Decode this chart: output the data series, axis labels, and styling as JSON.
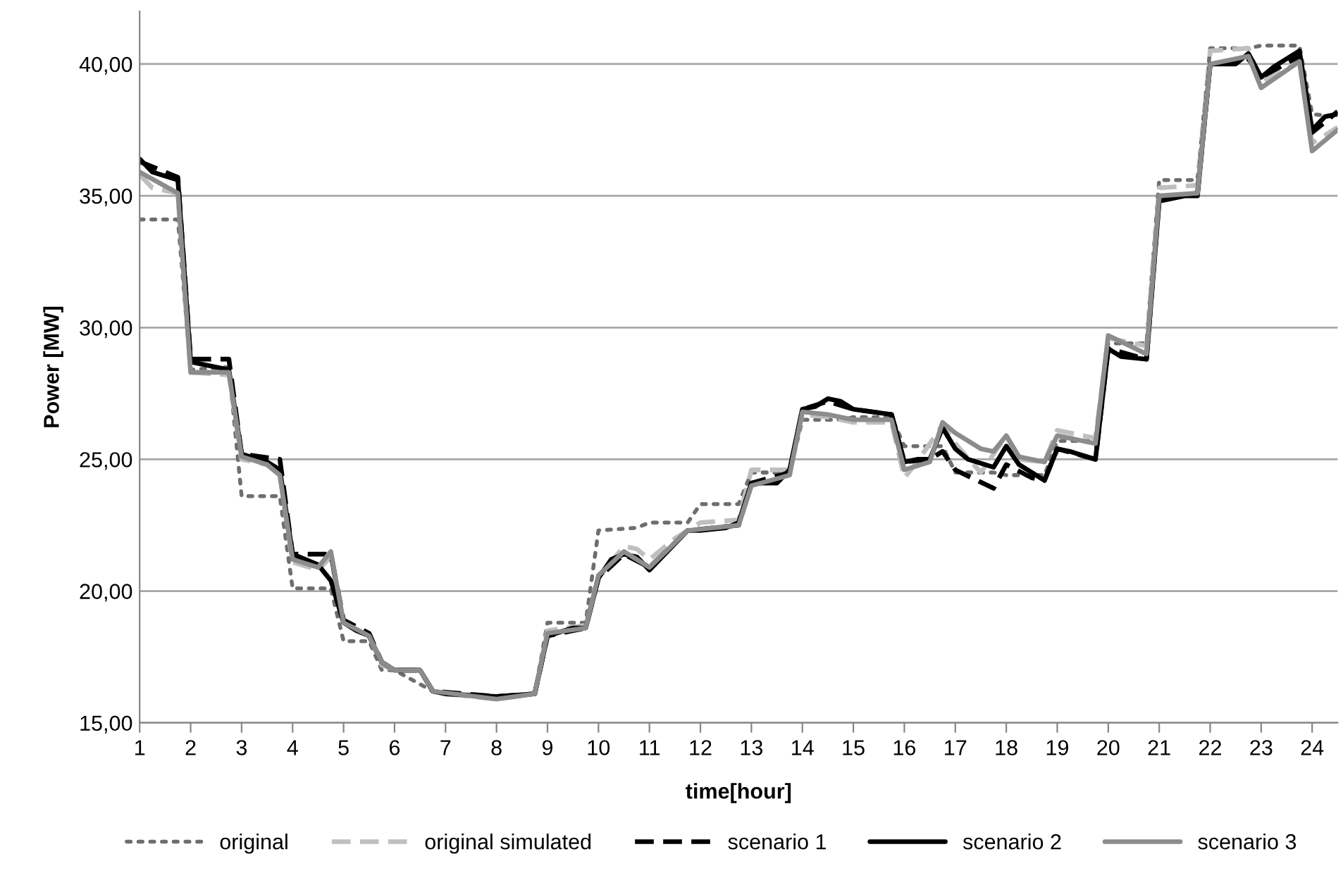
{
  "chart_data": {
    "type": "line",
    "xlabel": "time[hour]",
    "ylabel": "Power [MW]",
    "xlim": [
      1,
      24.5
    ],
    "xticks": [
      1,
      2,
      3,
      4,
      5,
      6,
      7,
      8,
      9,
      10,
      11,
      12,
      13,
      14,
      15,
      16,
      17,
      18,
      19,
      20,
      21,
      22,
      23,
      24
    ],
    "ylim": [
      15,
      42
    ],
    "yticks": [
      {
        "value": 15,
        "label": "15,00"
      },
      {
        "value": 20,
        "label": "20,00"
      },
      {
        "value": 25,
        "label": "25,00"
      },
      {
        "value": 30,
        "label": "30,00"
      },
      {
        "value": 35,
        "label": "35,00"
      },
      {
        "value": 40,
        "label": "40,00"
      }
    ],
    "grid": "y",
    "legend": "bottom",
    "marker": "none",
    "series": [
      {
        "name": "original",
        "color": "#6e6e6e",
        "line_style": "dotted",
        "x": [
          1,
          1.75,
          2,
          2.75,
          3,
          3.75,
          4,
          4.75,
          5,
          5.5,
          5.75,
          6,
          6.75,
          8,
          8.75,
          9,
          9.75,
          10,
          10.75,
          11,
          11.75,
          12,
          12.75,
          13,
          13.75,
          14,
          14.75,
          15,
          15.75,
          16,
          16.75,
          17,
          17.75,
          18,
          18.75,
          19,
          19.75,
          20,
          20.75,
          21,
          21.75,
          22,
          22.75,
          23,
          23.75,
          24,
          24.5
        ],
        "values": [
          34.1,
          34.1,
          28.4,
          28.5,
          23.6,
          23.6,
          20.1,
          20.1,
          18.1,
          18.1,
          17.0,
          17.0,
          16.2,
          15.9,
          16.1,
          18.8,
          18.8,
          22.3,
          22.4,
          22.6,
          22.6,
          23.3,
          23.3,
          24.5,
          24.5,
          26.5,
          26.5,
          26.6,
          26.6,
          25.5,
          25.5,
          24.5,
          24.5,
          24.4,
          24.4,
          25.7,
          25.7,
          29.4,
          29.4,
          35.6,
          35.6,
          40.6,
          40.6,
          40.7,
          40.7,
          38.1,
          38.0
        ]
      },
      {
        "name": "original simulated",
        "color": "#bfbfbf",
        "line_style": "dashed",
        "x": [
          1,
          1.25,
          1.75,
          2,
          2.75,
          3,
          3.5,
          3.75,
          4,
          4.5,
          4.75,
          5,
          5.5,
          5.75,
          6,
          6.5,
          6.75,
          7,
          8,
          8.75,
          9,
          9.75,
          10,
          10.5,
          10.75,
          11,
          11.5,
          12,
          12.75,
          13,
          13.75,
          14,
          14.5,
          15,
          15.75,
          16,
          16.25,
          16.75,
          17,
          17.5,
          18,
          18.25,
          18.75,
          19,
          19.75,
          20,
          20.75,
          21,
          21.75,
          22,
          22.75,
          23,
          23.75,
          24,
          24.5
        ],
        "values": [
          35.8,
          35.3,
          35.1,
          28.3,
          28.2,
          25.0,
          24.8,
          24.4,
          21.1,
          20.8,
          21.3,
          18.8,
          18.3,
          17.2,
          17.0,
          17.0,
          16.2,
          16.1,
          15.9,
          16.1,
          18.5,
          18.7,
          20.5,
          21.7,
          21.6,
          21.2,
          22.0,
          22.6,
          22.7,
          24.6,
          24.6,
          26.7,
          26.6,
          26.4,
          26.4,
          24.3,
          24.9,
          26.3,
          25.6,
          24.5,
          25.9,
          25.0,
          24.9,
          26.1,
          25.8,
          29.6,
          29.3,
          35.3,
          35.4,
          40.5,
          40.6,
          39.3,
          40.2,
          37.0,
          37.6
        ]
      },
      {
        "name": "scenario 1",
        "color": "#000000",
        "line_style": "dashed",
        "x": [
          1,
          1.75,
          2,
          2.75,
          3,
          3.75,
          4,
          4.75,
          5,
          5.5,
          5.75,
          6,
          6.5,
          6.75,
          8,
          8.75,
          9,
          9.75,
          10,
          10.5,
          11,
          11.75,
          12.75,
          13,
          13.75,
          14,
          14.5,
          15,
          15.75,
          16,
          16.5,
          16.75,
          17,
          17.75,
          18,
          18.5,
          18.75,
          19,
          19.75,
          20,
          20.75,
          21,
          21.75,
          22,
          22.75,
          23,
          23.75,
          24,
          24.5
        ],
        "values": [
          36.3,
          35.7,
          28.8,
          28.8,
          25.2,
          25.0,
          21.4,
          21.4,
          18.9,
          18.4,
          17.3,
          17.0,
          17.0,
          16.2,
          16.0,
          16.1,
          18.3,
          18.6,
          20.5,
          21.4,
          20.9,
          22.3,
          22.5,
          24.1,
          24.5,
          26.9,
          27.2,
          26.9,
          26.7,
          24.9,
          25.0,
          25.3,
          24.6,
          23.9,
          24.8,
          24.3,
          24.2,
          25.4,
          25.0,
          29.2,
          28.8,
          34.9,
          35.1,
          40.0,
          40.2,
          39.5,
          40.3,
          37.4,
          38.2
        ]
      },
      {
        "name": "scenario 2",
        "color": "#000000",
        "line_style": "solid",
        "x": [
          1,
          1.25,
          1.75,
          2,
          2.25,
          2.75,
          3,
          3.5,
          3.75,
          4,
          4.5,
          4.75,
          5,
          5.25,
          5.5,
          5.75,
          6,
          6.5,
          6.75,
          7,
          8,
          8.75,
          9,
          9.5,
          9.75,
          10,
          10.25,
          10.5,
          10.75,
          11,
          11.5,
          11.75,
          12,
          12.5,
          12.75,
          13,
          13.5,
          13.75,
          14,
          14.25,
          14.5,
          14.75,
          15,
          15.75,
          16,
          16.25,
          16.5,
          16.75,
          17,
          17.25,
          17.75,
          18,
          18.25,
          18.75,
          19,
          19.25,
          19.75,
          20,
          20.25,
          20.75,
          21,
          21.5,
          21.75,
          22,
          22.5,
          22.75,
          23,
          23.25,
          23.75,
          24,
          24.25,
          24.5
        ],
        "values": [
          36.4,
          35.9,
          35.6,
          28.7,
          28.6,
          28.4,
          25.2,
          24.9,
          24.6,
          21.4,
          21.0,
          20.4,
          18.8,
          18.5,
          18.3,
          17.3,
          17.0,
          17.0,
          16.2,
          16.1,
          16.0,
          16.1,
          18.3,
          18.6,
          18.6,
          20.5,
          21.2,
          21.4,
          21.3,
          20.8,
          21.8,
          22.3,
          22.3,
          22.4,
          22.6,
          24.1,
          24.1,
          24.6,
          26.9,
          27.0,
          27.3,
          27.2,
          26.9,
          26.7,
          24.9,
          25.0,
          25.0,
          26.2,
          25.4,
          25.0,
          24.7,
          25.5,
          24.8,
          24.2,
          25.4,
          25.3,
          25.0,
          29.2,
          28.9,
          28.8,
          34.8,
          35.0,
          35.0,
          40.0,
          40.0,
          40.4,
          39.5,
          39.9,
          40.5,
          37.5,
          38.0,
          38.1
        ]
      },
      {
        "name": "scenario 3",
        "color": "#8c8c8c",
        "line_style": "solid",
        "x": [
          1,
          1.75,
          2,
          2.75,
          3,
          3.5,
          3.75,
          4,
          4.5,
          4.75,
          5,
          5.5,
          5.75,
          6,
          6.5,
          6.75,
          8,
          8.75,
          9,
          9.75,
          10,
          10.5,
          11,
          11.75,
          12.75,
          13,
          13.75,
          14,
          14.5,
          15,
          15.75,
          16,
          16.5,
          16.75,
          17,
          17.5,
          17.75,
          18,
          18.25,
          18.75,
          19,
          19.75,
          20,
          20.75,
          21,
          21.75,
          22,
          22.75,
          23,
          23.75,
          24,
          24.5
        ],
        "values": [
          35.9,
          35.1,
          28.3,
          28.3,
          25.1,
          24.8,
          24.4,
          21.2,
          20.9,
          21.5,
          18.8,
          18.3,
          17.3,
          17.0,
          17.0,
          16.2,
          15.9,
          16.1,
          18.4,
          18.6,
          20.6,
          21.5,
          20.9,
          22.3,
          22.5,
          24.0,
          24.4,
          26.8,
          26.7,
          26.5,
          26.5,
          24.6,
          24.9,
          26.4,
          26.0,
          25.4,
          25.3,
          25.9,
          25.1,
          24.9,
          25.9,
          25.6,
          29.7,
          29.0,
          35.0,
          35.1,
          40.0,
          40.3,
          39.1,
          40.1,
          36.7,
          37.5
        ]
      }
    ]
  }
}
